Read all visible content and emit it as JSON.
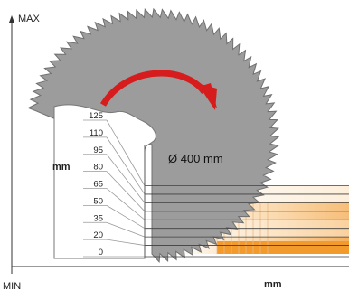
{
  "labels": {
    "axis_max": "MAX",
    "axis_min": "MIN",
    "unit_left": "mm",
    "unit_bottom": "mm",
    "blade_diameter": "Ø 400 mm"
  },
  "heights": [
    "125",
    "110",
    "95",
    "80",
    "65",
    "50",
    "35",
    "20",
    "0"
  ],
  "colors": {
    "blade": "#9a9a9a",
    "blade_outline": "#6f6f6f",
    "arrow": "#d61c1c",
    "band_light": "#fbe8cf",
    "band_dark": "#f29a2b",
    "grid": "#b9b9b9",
    "axis": "#333333"
  },
  "icons": {
    "rotation": "clockwise-arrow-icon"
  }
}
